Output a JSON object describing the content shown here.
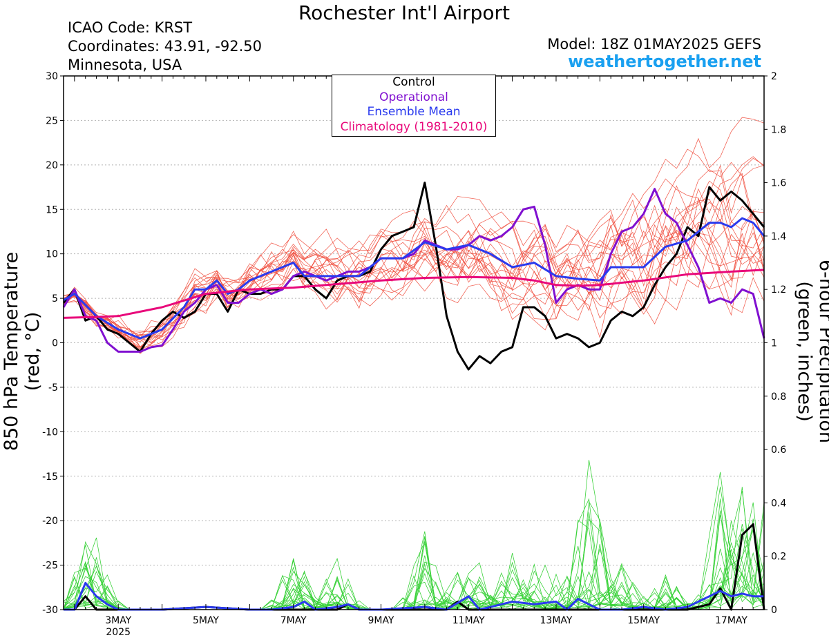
{
  "header": {
    "title": "Rochester Int'l Airport",
    "icao": "ICAO Code: KRST",
    "coords": "Coordinates: 43.91, -92.50",
    "state": "Minnesota, USA",
    "model": "Model: 18Z 01MAY2025 GEFS",
    "site": "weathertogether.net"
  },
  "legend": {
    "control": "Control",
    "operational": "Operational",
    "mean": "Ensemble Mean",
    "climo": "Climatology (1981-2010)"
  },
  "colors": {
    "control": "#000000",
    "operational": "#8010d0",
    "mean": "#2a3aee",
    "climo": "#e8087a",
    "members_temp": "#f04a3a",
    "members_precip": "#3ad23a",
    "site": "#1aa0f0"
  },
  "chart_data": {
    "type": "line",
    "x_unit": "days since 1 May 2025 00Z",
    "x_range": [
      1.75,
      17.75
    ],
    "x_ticks": [
      {
        "x": 3,
        "label": "3MAY",
        "sub": "2025"
      },
      {
        "x": 5,
        "label": "5MAY"
      },
      {
        "x": 7,
        "label": "7MAY"
      },
      {
        "x": 9,
        "label": "9MAY"
      },
      {
        "x": 11,
        "label": "11MAY"
      },
      {
        "x": 13,
        "label": "13MAY"
      },
      {
        "x": 15,
        "label": "15MAY"
      },
      {
        "x": 17,
        "label": "17MAY"
      }
    ],
    "y_left": {
      "label": "850 hPa Temperature (red, °C)",
      "range": [
        -30,
        30
      ],
      "ticks": [
        30,
        25,
        20,
        15,
        10,
        5,
        0,
        -5,
        -10,
        -15,
        -20,
        -25,
        -30
      ]
    },
    "y_right": {
      "label": "6-hour Precipitation (green, inches)",
      "range": [
        0,
        2
      ],
      "ticks": [
        "2",
        "1.8",
        "1.6",
        "1.4",
        "1.2",
        "1",
        "0.8",
        "0.6",
        "0.4",
        "0.2",
        "0"
      ]
    },
    "grid": "horizontal dashed",
    "temperature_series": [
      {
        "name": "Control",
        "points": [
          [
            1.75,
            4.5
          ],
          [
            2,
            6
          ],
          [
            2.25,
            2.5
          ],
          [
            2.5,
            3
          ],
          [
            2.75,
            1.5
          ],
          [
            3,
            1
          ],
          [
            3.25,
            0
          ],
          [
            3.5,
            -1
          ],
          [
            3.75,
            1
          ],
          [
            4,
            2.5
          ],
          [
            4.25,
            3.5
          ],
          [
            4.5,
            2.8
          ],
          [
            4.75,
            3.5
          ],
          [
            5,
            5.5
          ],
          [
            5.25,
            5.5
          ],
          [
            5.5,
            3.5
          ],
          [
            5.75,
            6
          ],
          [
            6,
            5.5
          ],
          [
            6.25,
            5.5
          ],
          [
            6.5,
            6
          ],
          [
            6.75,
            6
          ],
          [
            7,
            7.5
          ],
          [
            7.25,
            7.5
          ],
          [
            7.5,
            6
          ],
          [
            7.75,
            5
          ],
          [
            8,
            7
          ],
          [
            8.25,
            7.5
          ],
          [
            8.5,
            7.5
          ],
          [
            8.75,
            8
          ],
          [
            9,
            10.5
          ],
          [
            9.25,
            12
          ],
          [
            9.5,
            12.5
          ],
          [
            9.75,
            13
          ],
          [
            10,
            18
          ],
          [
            10.25,
            11
          ],
          [
            10.5,
            3
          ],
          [
            10.75,
            -1
          ],
          [
            11,
            -3
          ],
          [
            11.25,
            -1.5
          ],
          [
            11.5,
            -2.3
          ],
          [
            11.75,
            -1
          ],
          [
            12,
            -0.5
          ],
          [
            12.25,
            4
          ],
          [
            12.5,
            4
          ],
          [
            12.75,
            3
          ],
          [
            13,
            0.5
          ],
          [
            13.25,
            1
          ],
          [
            13.5,
            0.5
          ],
          [
            13.75,
            -0.5
          ],
          [
            14,
            0
          ],
          [
            14.25,
            2.5
          ],
          [
            14.5,
            3.5
          ],
          [
            14.75,
            3
          ],
          [
            15,
            4
          ],
          [
            15.25,
            6.5
          ],
          [
            15.5,
            8.5
          ],
          [
            15.75,
            10
          ],
          [
            16,
            13
          ],
          [
            16.25,
            12
          ],
          [
            16.5,
            17.5
          ],
          [
            16.75,
            16
          ],
          [
            17,
            17
          ],
          [
            17.25,
            16
          ],
          [
            17.5,
            14.5
          ],
          [
            17.75,
            13
          ]
        ]
      },
      {
        "name": "Operational",
        "points": [
          [
            1.75,
            4
          ],
          [
            2,
            6
          ],
          [
            2.25,
            3
          ],
          [
            2.5,
            2.5
          ],
          [
            2.75,
            0
          ],
          [
            3,
            -1
          ],
          [
            3.25,
            -1
          ],
          [
            3.5,
            -1
          ],
          [
            3.75,
            -0.5
          ],
          [
            4,
            -0.3
          ],
          [
            4.25,
            1.5
          ],
          [
            4.5,
            3.5
          ],
          [
            4.75,
            4.5
          ],
          [
            5,
            6
          ],
          [
            5.25,
            6.5
          ],
          [
            5.5,
            4.5
          ],
          [
            5.75,
            4.5
          ],
          [
            6,
            5.5
          ],
          [
            6.25,
            6
          ],
          [
            6.5,
            5.5
          ],
          [
            6.75,
            6
          ],
          [
            7,
            7.5
          ],
          [
            7.25,
            8
          ],
          [
            7.5,
            7.5
          ],
          [
            7.75,
            7
          ],
          [
            8,
            7.5
          ],
          [
            8.25,
            8
          ],
          [
            8.5,
            8
          ],
          [
            8.75,
            8.5
          ],
          [
            9,
            9.5
          ],
          [
            9.25,
            9.5
          ],
          [
            9.5,
            9.5
          ],
          [
            9.75,
            10
          ],
          [
            10,
            11.5
          ],
          [
            10.25,
            11
          ],
          [
            10.5,
            10.5
          ],
          [
            10.75,
            10.5
          ],
          [
            11,
            11
          ],
          [
            11.25,
            12
          ],
          [
            11.5,
            11.5
          ],
          [
            11.75,
            12
          ],
          [
            12,
            13
          ],
          [
            12.25,
            15
          ],
          [
            12.5,
            15.3
          ],
          [
            12.75,
            11
          ],
          [
            13,
            4.5
          ],
          [
            13.25,
            6
          ],
          [
            13.5,
            6.5
          ],
          [
            13.75,
            6
          ],
          [
            14,
            6
          ],
          [
            14.25,
            10
          ],
          [
            14.5,
            12.5
          ],
          [
            14.75,
            13
          ],
          [
            15,
            14.5
          ],
          [
            15.25,
            17.3
          ],
          [
            15.5,
            14.5
          ],
          [
            15.75,
            13.5
          ],
          [
            16,
            11
          ],
          [
            16.25,
            8.5
          ],
          [
            16.5,
            4.5
          ],
          [
            16.75,
            5
          ],
          [
            17,
            4.5
          ],
          [
            17.25,
            6
          ],
          [
            17.5,
            5.5
          ],
          [
            17.75,
            0.5
          ]
        ]
      },
      {
        "name": "Ensemble Mean",
        "points": [
          [
            1.75,
            4.8
          ],
          [
            2,
            5.5
          ],
          [
            2.5,
            3
          ],
          [
            3,
            1.5
          ],
          [
            3.5,
            0.5
          ],
          [
            4,
            1.5
          ],
          [
            4.5,
            4
          ],
          [
            4.75,
            6
          ],
          [
            5,
            6
          ],
          [
            5.25,
            7
          ],
          [
            5.5,
            5.5
          ],
          [
            5.75,
            6
          ],
          [
            6,
            7
          ],
          [
            6.5,
            8
          ],
          [
            7,
            9
          ],
          [
            7.25,
            7.5
          ],
          [
            7.5,
            7.5
          ],
          [
            8,
            7.5
          ],
          [
            8.5,
            7.5
          ],
          [
            9,
            9.5
          ],
          [
            9.5,
            9.5
          ],
          [
            10,
            11.3
          ],
          [
            10.5,
            10.5
          ],
          [
            11,
            11
          ],
          [
            11.5,
            10
          ],
          [
            12,
            8.5
          ],
          [
            12.5,
            9
          ],
          [
            13,
            7.5
          ],
          [
            13.5,
            7.2
          ],
          [
            14,
            7
          ],
          [
            14.25,
            8.5
          ],
          [
            14.5,
            8.5
          ],
          [
            15,
            8.5
          ],
          [
            15.5,
            10.8
          ],
          [
            16,
            11.5
          ],
          [
            16.5,
            13.5
          ],
          [
            16.75,
            13.5
          ],
          [
            17,
            13
          ],
          [
            17.25,
            14
          ],
          [
            17.5,
            13.5
          ],
          [
            17.75,
            12
          ]
        ]
      },
      {
        "name": "Climatology (1981-2010)",
        "points": [
          [
            1.75,
            2.8
          ],
          [
            2.5,
            2.9
          ],
          [
            3,
            3
          ],
          [
            4,
            4
          ],
          [
            5,
            5.5
          ],
          [
            6,
            6
          ],
          [
            7,
            6.2
          ],
          [
            8,
            6.6
          ],
          [
            9,
            7
          ],
          [
            10,
            7.3
          ],
          [
            11,
            7.4
          ],
          [
            12,
            7.3
          ],
          [
            12.5,
            7
          ],
          [
            13,
            6.5
          ],
          [
            13.5,
            6.4
          ],
          [
            14,
            6.5
          ],
          [
            15,
            7
          ],
          [
            16,
            7.7
          ],
          [
            17,
            8
          ],
          [
            17.75,
            8.2
          ]
        ]
      }
    ],
    "precip_series": [
      {
        "name": "Control",
        "points": [
          [
            1.75,
            0
          ],
          [
            2,
            0
          ],
          [
            2.25,
            0.05
          ],
          [
            2.5,
            0
          ],
          [
            2.75,
            0
          ],
          [
            3,
            0
          ],
          [
            4,
            0
          ],
          [
            5,
            0.01
          ],
          [
            6,
            0
          ],
          [
            7,
            0
          ],
          [
            7.5,
            0
          ],
          [
            8,
            0
          ],
          [
            8.25,
            0.02
          ],
          [
            8.5,
            0
          ],
          [
            9,
            0
          ],
          [
            10,
            0
          ],
          [
            10.5,
            0
          ],
          [
            10.75,
            0.03
          ],
          [
            11,
            0
          ],
          [
            12,
            0
          ],
          [
            13,
            0
          ],
          [
            14,
            0
          ],
          [
            15,
            0
          ],
          [
            16,
            0
          ],
          [
            16.5,
            0.02
          ],
          [
            16.75,
            0.08
          ],
          [
            17,
            0
          ],
          [
            17.25,
            0.28
          ],
          [
            17.5,
            0.32
          ],
          [
            17.75,
            0
          ]
        ]
      },
      {
        "name": "Ensemble Mean",
        "points": [
          [
            1.75,
            0
          ],
          [
            2,
            0
          ],
          [
            2.25,
            0.1
          ],
          [
            2.5,
            0.05
          ],
          [
            2.75,
            0.02
          ],
          [
            3,
            0
          ],
          [
            3.5,
            0
          ],
          [
            4,
            0
          ],
          [
            5,
            0.01
          ],
          [
            6,
            0
          ],
          [
            6.5,
            0
          ],
          [
            7,
            0.01
          ],
          [
            7.25,
            0.03
          ],
          [
            7.5,
            0
          ],
          [
            8,
            0.01
          ],
          [
            8.25,
            0.02
          ],
          [
            8.5,
            0
          ],
          [
            9,
            0
          ],
          [
            10,
            0.01
          ],
          [
            10.5,
            0
          ],
          [
            11,
            0.05
          ],
          [
            11.25,
            0
          ],
          [
            11.75,
            0.02
          ],
          [
            12,
            0.03
          ],
          [
            12.5,
            0.02
          ],
          [
            13,
            0.03
          ],
          [
            13.25,
            0
          ],
          [
            13.5,
            0.04
          ],
          [
            13.75,
            0.02
          ],
          [
            14,
            0
          ],
          [
            14.5,
            0
          ],
          [
            15,
            0.01
          ],
          [
            15.5,
            0
          ],
          [
            16,
            0.01
          ],
          [
            16.5,
            0.05
          ],
          [
            16.75,
            0.07
          ],
          [
            17,
            0.05
          ],
          [
            17.25,
            0.06
          ],
          [
            17.5,
            0.05
          ],
          [
            17.75,
            0.05
          ]
        ]
      }
    ]
  }
}
